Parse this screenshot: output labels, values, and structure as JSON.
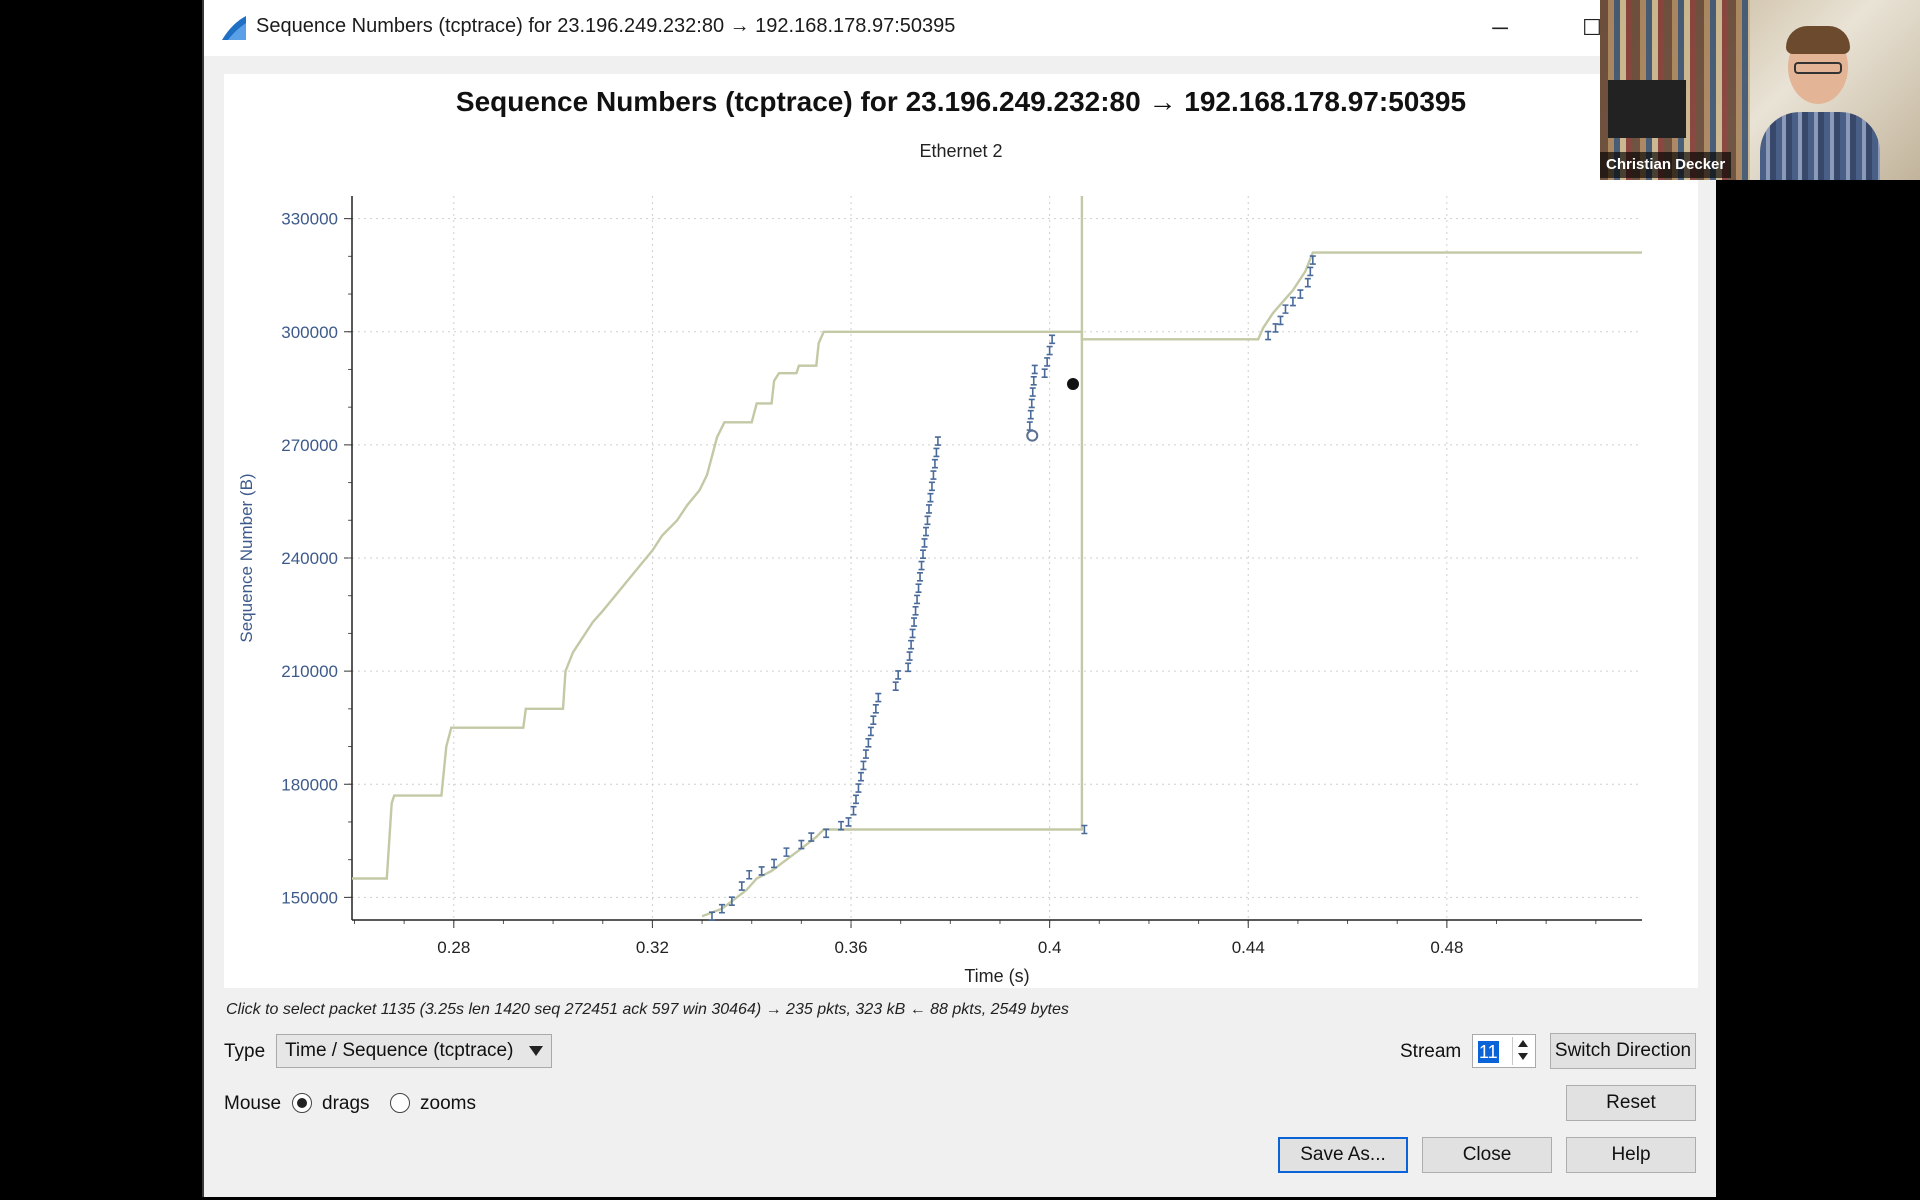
{
  "window": {
    "title": "Sequence Numbers (tcptrace) for 23.196.249.232:80 → 192.168.178.97:50395",
    "minimize_glyph": "─",
    "maximize_glyph": "☐",
    "icon": "wireshark-fin-icon"
  },
  "status_hint": "Click to select packet 1135 (3.25s len 1420 seq 272451 ack 597 win 30464) → 235 pkts, 323 kB ← 88 pkts, 2549 bytes",
  "controls": {
    "type_label": "Type",
    "type_value": "Time / Sequence (tcptrace)",
    "mouse_label": "Mouse",
    "drags_label": "drags",
    "zooms_label": "zooms",
    "mouse_mode": "drags",
    "stream_label": "Stream",
    "stream_value": "11",
    "switch_direction": "Switch Direction",
    "reset": "Reset",
    "save_as": "Save As...",
    "close": "Close",
    "help": "Help"
  },
  "video": {
    "participant_name": "Christian Decker"
  },
  "colors": {
    "window_line": "#c3c8a5",
    "segment_marks": "#4a6a9a",
    "axis_text": "#3d5a8a"
  },
  "chart_data": {
    "type": "line",
    "title": "Sequence Numbers (tcptrace) for 23.196.249.232:80 → 192.168.178.97:50395",
    "subtitle": "Ethernet 2",
    "xlabel": "Time (s)",
    "ylabel": "Sequence Number (B)",
    "xlim": [
      0.2595,
      0.5193
    ],
    "ylim": [
      144000,
      336000
    ],
    "x_ticks": [
      0.28,
      0.32,
      0.36,
      0.4,
      0.44,
      0.48
    ],
    "x_tick_labels": [
      "0.28",
      "0.32",
      "0.36",
      "0.4",
      "0.44",
      "0.48"
    ],
    "y_ticks": [
      150000,
      180000,
      210000,
      240000,
      270000,
      300000,
      330000
    ],
    "y_tick_labels": [
      "150000",
      "180000",
      "210000",
      "240000",
      "270000",
      "300000",
      "330000"
    ],
    "grid": true,
    "series": [
      {
        "role": "receive-window",
        "points": [
          [
            0.2595,
            155000
          ],
          [
            0.2665,
            155000
          ],
          [
            0.2675,
            175000
          ],
          [
            0.268,
            177000
          ],
          [
            0.2775,
            177000
          ],
          [
            0.2785,
            190000
          ],
          [
            0.2795,
            195000
          ],
          [
            0.294,
            195000
          ],
          [
            0.2945,
            200000
          ],
          [
            0.302,
            200000
          ],
          [
            0.3025,
            210000
          ],
          [
            0.304,
            215000
          ],
          [
            0.306,
            219000
          ],
          [
            0.308,
            223000
          ],
          [
            0.31,
            226000
          ],
          [
            0.3125,
            230000
          ],
          [
            0.315,
            234000
          ],
          [
            0.3175,
            238000
          ],
          [
            0.32,
            242000
          ],
          [
            0.322,
            246000
          ],
          [
            0.325,
            250000
          ],
          [
            0.327,
            254000
          ],
          [
            0.3295,
            258000
          ],
          [
            0.331,
            262000
          ],
          [
            0.332,
            267000
          ],
          [
            0.333,
            272000
          ],
          [
            0.3345,
            276000
          ],
          [
            0.34,
            276000
          ],
          [
            0.341,
            281000
          ],
          [
            0.344,
            281000
          ],
          [
            0.3445,
            287000
          ],
          [
            0.3455,
            289000
          ],
          [
            0.349,
            289000
          ],
          [
            0.3495,
            291000
          ],
          [
            0.353,
            291000
          ],
          [
            0.3535,
            297000
          ],
          [
            0.3545,
            300000
          ],
          [
            0.4065,
            300000
          ],
          [
            0.4065,
            298000
          ],
          [
            0.442,
            298000
          ],
          [
            0.443,
            301000
          ],
          [
            0.445,
            305000
          ],
          [
            0.447,
            308000
          ],
          [
            0.449,
            311000
          ],
          [
            0.4515,
            316000
          ],
          [
            0.453,
            321000
          ],
          [
            0.5193,
            321000
          ]
        ]
      },
      {
        "role": "ack-line",
        "points": [
          [
            0.33,
            145000
          ],
          [
            0.334,
            147000
          ],
          [
            0.337,
            150000
          ],
          [
            0.339,
            152000
          ],
          [
            0.341,
            155000
          ],
          [
            0.344,
            157000
          ],
          [
            0.347,
            160000
          ],
          [
            0.35,
            163000
          ],
          [
            0.353,
            166000
          ],
          [
            0.3545,
            168000
          ],
          [
            0.4065,
            168000
          ],
          [
            0.4065,
            336000
          ]
        ]
      },
      {
        "role": "data-segments",
        "points": [
          [
            0.332,
            145000
          ],
          [
            0.334,
            147000
          ],
          [
            0.336,
            149000
          ],
          [
            0.338,
            153000
          ],
          [
            0.3395,
            156000
          ],
          [
            0.342,
            157000
          ],
          [
            0.3445,
            159000
          ],
          [
            0.347,
            162000
          ],
          [
            0.35,
            164000
          ],
          [
            0.352,
            166000
          ],
          [
            0.355,
            167000
          ],
          [
            0.358,
            169000
          ],
          [
            0.3595,
            170000
          ],
          [
            0.3605,
            173000
          ],
          [
            0.361,
            176000
          ],
          [
            0.3615,
            179000
          ],
          [
            0.362,
            182000
          ],
          [
            0.3625,
            185000
          ],
          [
            0.363,
            188000
          ],
          [
            0.3635,
            191000
          ],
          [
            0.364,
            194000
          ],
          [
            0.3645,
            197000
          ],
          [
            0.365,
            200000
          ],
          [
            0.3655,
            203000
          ],
          [
            0.369,
            206000
          ],
          [
            0.3695,
            209000
          ],
          [
            0.3715,
            211000
          ],
          [
            0.3718,
            214000
          ],
          [
            0.3721,
            217000
          ],
          [
            0.3724,
            220000
          ],
          [
            0.3727,
            223000
          ],
          [
            0.373,
            226000
          ],
          [
            0.3733,
            229000
          ],
          [
            0.3736,
            232000
          ],
          [
            0.3739,
            235000
          ],
          [
            0.3742,
            238000
          ],
          [
            0.3745,
            241000
          ],
          [
            0.3748,
            244000
          ],
          [
            0.3751,
            247000
          ],
          [
            0.3754,
            250000
          ],
          [
            0.3757,
            253000
          ],
          [
            0.376,
            256000
          ],
          [
            0.3763,
            259000
          ],
          [
            0.3766,
            262000
          ],
          [
            0.3769,
            265000
          ],
          [
            0.3772,
            268000
          ],
          [
            0.3775,
            271000
          ],
          [
            0.396,
            275000
          ],
          [
            0.3962,
            278000
          ],
          [
            0.3964,
            281000
          ],
          [
            0.3966,
            284000
          ],
          [
            0.3968,
            287000
          ],
          [
            0.397,
            290000
          ],
          [
            0.399,
            289000
          ],
          [
            0.3995,
            292000
          ],
          [
            0.4,
            295000
          ],
          [
            0.4005,
            298000
          ],
          [
            0.407,
            168000
          ],
          [
            0.444,
            299000
          ],
          [
            0.4455,
            301000
          ],
          [
            0.4465,
            303000
          ],
          [
            0.4475,
            306000
          ],
          [
            0.449,
            308000
          ],
          [
            0.4505,
            310000
          ],
          [
            0.452,
            313000
          ],
          [
            0.4525,
            316000
          ],
          [
            0.453,
            319000
          ]
        ]
      }
    ],
    "selected_point": [
      0.3965,
      272451
    ]
  }
}
